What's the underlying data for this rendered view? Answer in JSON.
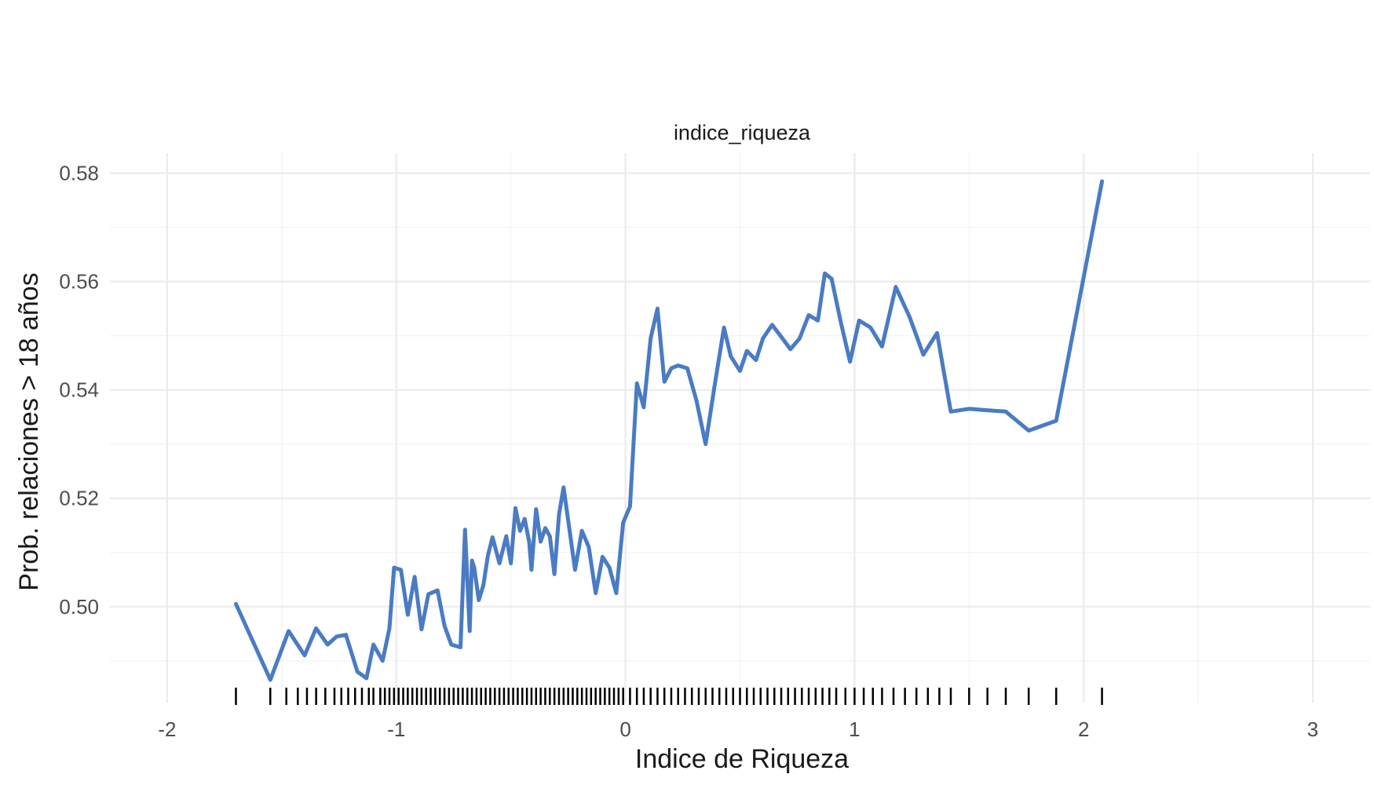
{
  "chart_data": {
    "type": "line",
    "title": "indice_riqueza",
    "xlabel": "Indice de Riqueza",
    "ylabel": "Prob. relaciones > 18 años",
    "xlim": [
      -2.25,
      3.25
    ],
    "ylim": [
      0.4823,
      0.5837
    ],
    "x_ticks": [
      -2,
      -1,
      0,
      1,
      2,
      3
    ],
    "x_tick_labels": [
      "-2",
      "-1",
      "0",
      "1",
      "2",
      "3"
    ],
    "y_ticks": [
      0.5,
      0.52,
      0.54,
      0.56,
      0.58
    ],
    "y_tick_labels": [
      "0.50",
      "0.52",
      "0.54",
      "0.56",
      "0.58"
    ],
    "grid": true,
    "line_color": "#4a7bc4",
    "x": [
      -1.7,
      -1.55,
      -1.47,
      -1.4,
      -1.35,
      -1.3,
      -1.26,
      -1.22,
      -1.17,
      -1.13,
      -1.1,
      -1.06,
      -1.03,
      -1.01,
      -0.98,
      -0.95,
      -0.92,
      -0.89,
      -0.86,
      -0.82,
      -0.79,
      -0.76,
      -0.72,
      -0.7,
      -0.68,
      -0.67,
      -0.66,
      -0.64,
      -0.62,
      -0.6,
      -0.58,
      -0.55,
      -0.52,
      -0.5,
      -0.48,
      -0.46,
      -0.44,
      -0.42,
      -0.41,
      -0.39,
      -0.37,
      -0.35,
      -0.33,
      -0.31,
      -0.29,
      -0.27,
      -0.25,
      -0.22,
      -0.19,
      -0.16,
      -0.13,
      -0.1,
      -0.07,
      -0.04,
      -0.01,
      0.02,
      0.05,
      0.08,
      0.11,
      0.14,
      0.17,
      0.2,
      0.23,
      0.27,
      0.31,
      0.35,
      0.39,
      0.43,
      0.46,
      0.5,
      0.53,
      0.57,
      0.6,
      0.64,
      0.68,
      0.72,
      0.76,
      0.8,
      0.84,
      0.87,
      0.9,
      0.94,
      0.98,
      1.02,
      1.07,
      1.12,
      1.18,
      1.24,
      1.3,
      1.36,
      1.42,
      1.5,
      1.56,
      1.66,
      1.76,
      1.88,
      2.08
    ],
    "y": [
      0.5005,
      0.4865,
      0.4955,
      0.491,
      0.496,
      0.493,
      0.4945,
      0.4948,
      0.488,
      0.4868,
      0.493,
      0.49,
      0.496,
      0.5072,
      0.5068,
      0.4985,
      0.5055,
      0.4958,
      0.5023,
      0.503,
      0.4965,
      0.493,
      0.4925,
      0.5142,
      0.4955,
      0.5085,
      0.5072,
      0.5012,
      0.504,
      0.5095,
      0.5128,
      0.508,
      0.513,
      0.508,
      0.5182,
      0.514,
      0.5162,
      0.512,
      0.5068,
      0.518,
      0.512,
      0.5145,
      0.513,
      0.506,
      0.517,
      0.522,
      0.516,
      0.5068,
      0.514,
      0.511,
      0.5025,
      0.5092,
      0.5072,
      0.5025,
      0.5155,
      0.5185,
      0.5412,
      0.5368,
      0.5495,
      0.555,
      0.5415,
      0.544,
      0.5445,
      0.544,
      0.538,
      0.53,
      0.541,
      0.5515,
      0.5462,
      0.5435,
      0.5472,
      0.5455,
      0.5495,
      0.552,
      0.5498,
      0.5475,
      0.5495,
      0.5538,
      0.5528,
      0.5615,
      0.5605,
      0.5525,
      0.5452,
      0.5528,
      0.5515,
      0.548,
      0.559,
      0.5535,
      0.5465,
      0.5505,
      0.536,
      0.5365,
      0.5363,
      0.536,
      0.5325,
      0.5343,
      0.5785
    ],
    "rug_x": [
      -1.7,
      -1.55,
      -1.48,
      -1.43,
      -1.39,
      -1.35,
      -1.31,
      -1.27,
      -1.24,
      -1.21,
      -1.18,
      -1.15,
      -1.12,
      -1.1,
      -1.07,
      -1.05,
      -1.03,
      -1.01,
      -0.99,
      -0.97,
      -0.95,
      -0.93,
      -0.91,
      -0.89,
      -0.87,
      -0.85,
      -0.83,
      -0.81,
      -0.79,
      -0.77,
      -0.75,
      -0.73,
      -0.71,
      -0.69,
      -0.67,
      -0.65,
      -0.63,
      -0.61,
      -0.59,
      -0.57,
      -0.55,
      -0.53,
      -0.51,
      -0.49,
      -0.47,
      -0.45,
      -0.43,
      -0.41,
      -0.39,
      -0.37,
      -0.35,
      -0.33,
      -0.31,
      -0.29,
      -0.27,
      -0.25,
      -0.23,
      -0.21,
      -0.19,
      -0.17,
      -0.15,
      -0.13,
      -0.11,
      -0.09,
      -0.07,
      -0.05,
      -0.03,
      -0.01,
      0.02,
      0.05,
      0.08,
      0.11,
      0.14,
      0.17,
      0.2,
      0.23,
      0.26,
      0.29,
      0.32,
      0.35,
      0.38,
      0.41,
      0.44,
      0.47,
      0.5,
      0.53,
      0.56,
      0.59,
      0.62,
      0.65,
      0.68,
      0.71,
      0.74,
      0.77,
      0.8,
      0.83,
      0.86,
      0.89,
      0.92,
      0.96,
      1.0,
      1.04,
      1.08,
      1.12,
      1.17,
      1.22,
      1.27,
      1.32,
      1.37,
      1.42,
      1.5,
      1.58,
      1.66,
      1.76,
      1.88,
      2.08
    ]
  }
}
